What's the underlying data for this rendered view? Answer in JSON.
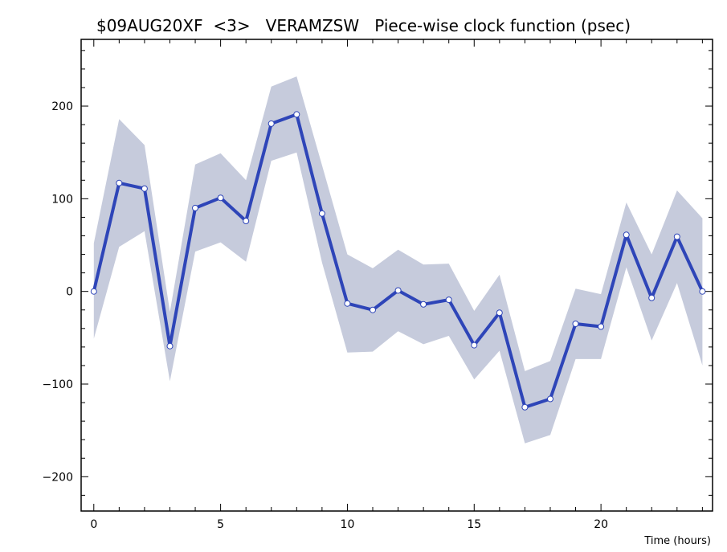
{
  "chart_data": {
    "type": "line",
    "title": "$09AUG20XF  <3>   VERAMZSW   Piece-wise clock function (psec)",
    "xlabel": "Time (hours)",
    "ylabel": "",
    "xlim": [
      -0.5,
      24.4
    ],
    "ylim": [
      -237,
      272
    ],
    "xticks": [
      0,
      5,
      10,
      15,
      20
    ],
    "yticks": [
      -200,
      -100,
      0,
      100,
      200
    ],
    "x_minor_step": 1,
    "y_minor_step": 20,
    "grid": false,
    "colors": {
      "line": "#2e45b8",
      "band": "#c6cbdc",
      "marker_fill": "#ffffff",
      "axis": "#000000"
    },
    "series": [
      {
        "x": [
          0,
          1,
          2,
          3,
          4,
          5,
          6,
          7,
          8,
          9,
          10,
          11,
          12,
          13,
          14,
          15,
          16,
          17,
          18,
          19,
          20,
          21,
          22,
          23,
          24
        ],
        "values": [
          0,
          117,
          111,
          -59,
          90,
          101,
          76,
          181,
          191,
          84,
          -13,
          -20,
          1,
          -14,
          -9,
          -58,
          -23,
          -125,
          -116,
          -35,
          -38,
          61,
          -7,
          59,
          0
        ],
        "upper": [
          52,
          186,
          158,
          -22,
          137,
          149,
          120,
          221,
          232,
          136,
          40,
          25,
          45,
          29,
          30,
          -21,
          18,
          -86,
          -75,
          3,
          -3,
          96,
          40,
          109,
          79
        ],
        "lower": [
          -51,
          48,
          65,
          -97,
          43,
          53,
          32,
          141,
          150,
          31,
          -66,
          -65,
          -43,
          -57,
          -48,
          -95,
          -64,
          -164,
          -155,
          -73,
          -73,
          26,
          -53,
          9,
          -80
        ]
      }
    ]
  }
}
